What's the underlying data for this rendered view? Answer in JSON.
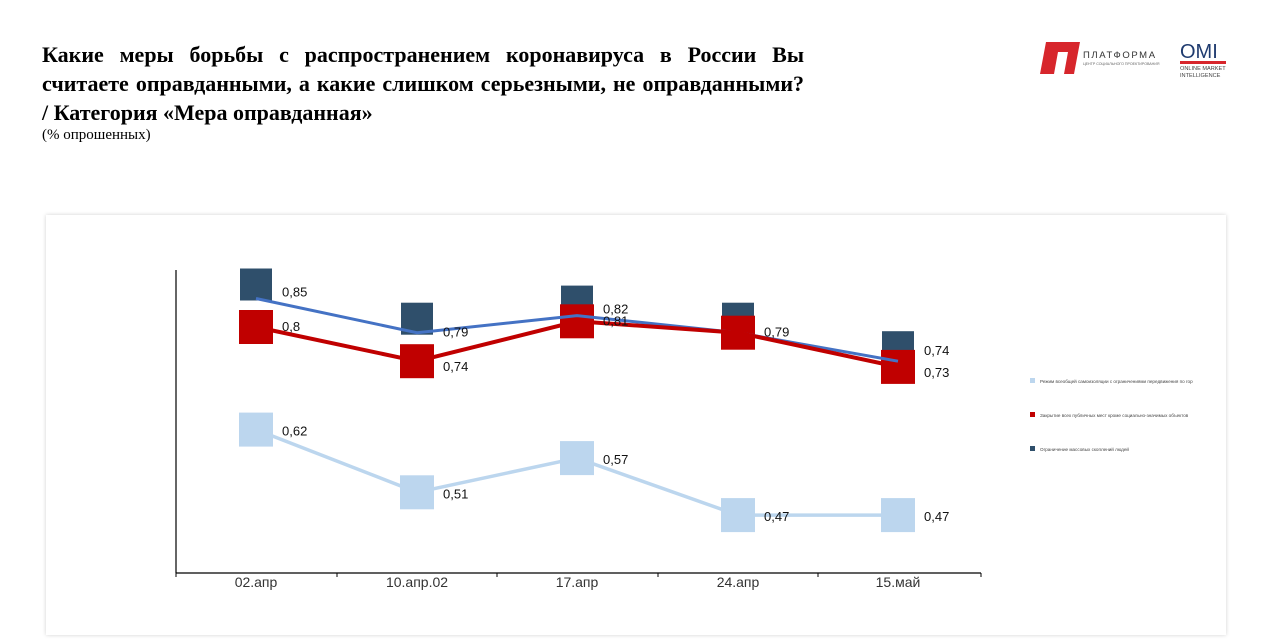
{
  "header": {
    "title": "Какие меры борьбы с распространением коронавируса в России Вы считаете оправданными, а какие слишком серьезными, не оправданными? / Категория «Мера оправданная»",
    "subtitle": "(% опрошенных)"
  },
  "logos": {
    "platforma_name": "ПЛАТФОРМА",
    "platforma_tagline": "ЦЕНТР СОЦИАЛЬНОГО ПРОЕКТИРОВАНИЯ",
    "omi_name": "OMI",
    "omi_line1": "ONLINE MARKET",
    "omi_line2": "INTELLIGENCE"
  },
  "colors": {
    "series_light": "#bcd6ee",
    "series_red": "#c00000",
    "series_dark_marker": "#2f4f6b",
    "series_dark_line": "#4472c4",
    "logo_red": "#d7262c"
  },
  "chart_data": {
    "type": "line",
    "categories": [
      "02.апр",
      "10.апр.02",
      "17.апр",
      "24.апр",
      "15.май"
    ],
    "ylim": [
      0.4,
      0.9
    ],
    "legend_position": "right",
    "grid": false,
    "series": [
      {
        "name": "Режим всеобщей самоизоляции с ограничениями передвижения по гор",
        "values": [
          0.62,
          0.51,
          0.57,
          0.47,
          0.47
        ],
        "labels": [
          "0,62",
          "0,51",
          "0,57",
          "0,47",
          "0,47"
        ]
      },
      {
        "name": "Закрытие всех публичных мест кроме социально-значимых объектов",
        "values": [
          0.8,
          0.74,
          0.81,
          0.79,
          0.73
        ],
        "labels": [
          "0,8",
          "0,74",
          "0,81",
          "",
          "0,73"
        ]
      },
      {
        "name": "Ограничение массовых скоплений людей",
        "values": [
          0.85,
          0.79,
          0.82,
          0.79,
          0.74
        ],
        "labels": [
          "0,85",
          "0,79",
          "0,82",
          "0,79",
          "0,74"
        ]
      }
    ]
  }
}
